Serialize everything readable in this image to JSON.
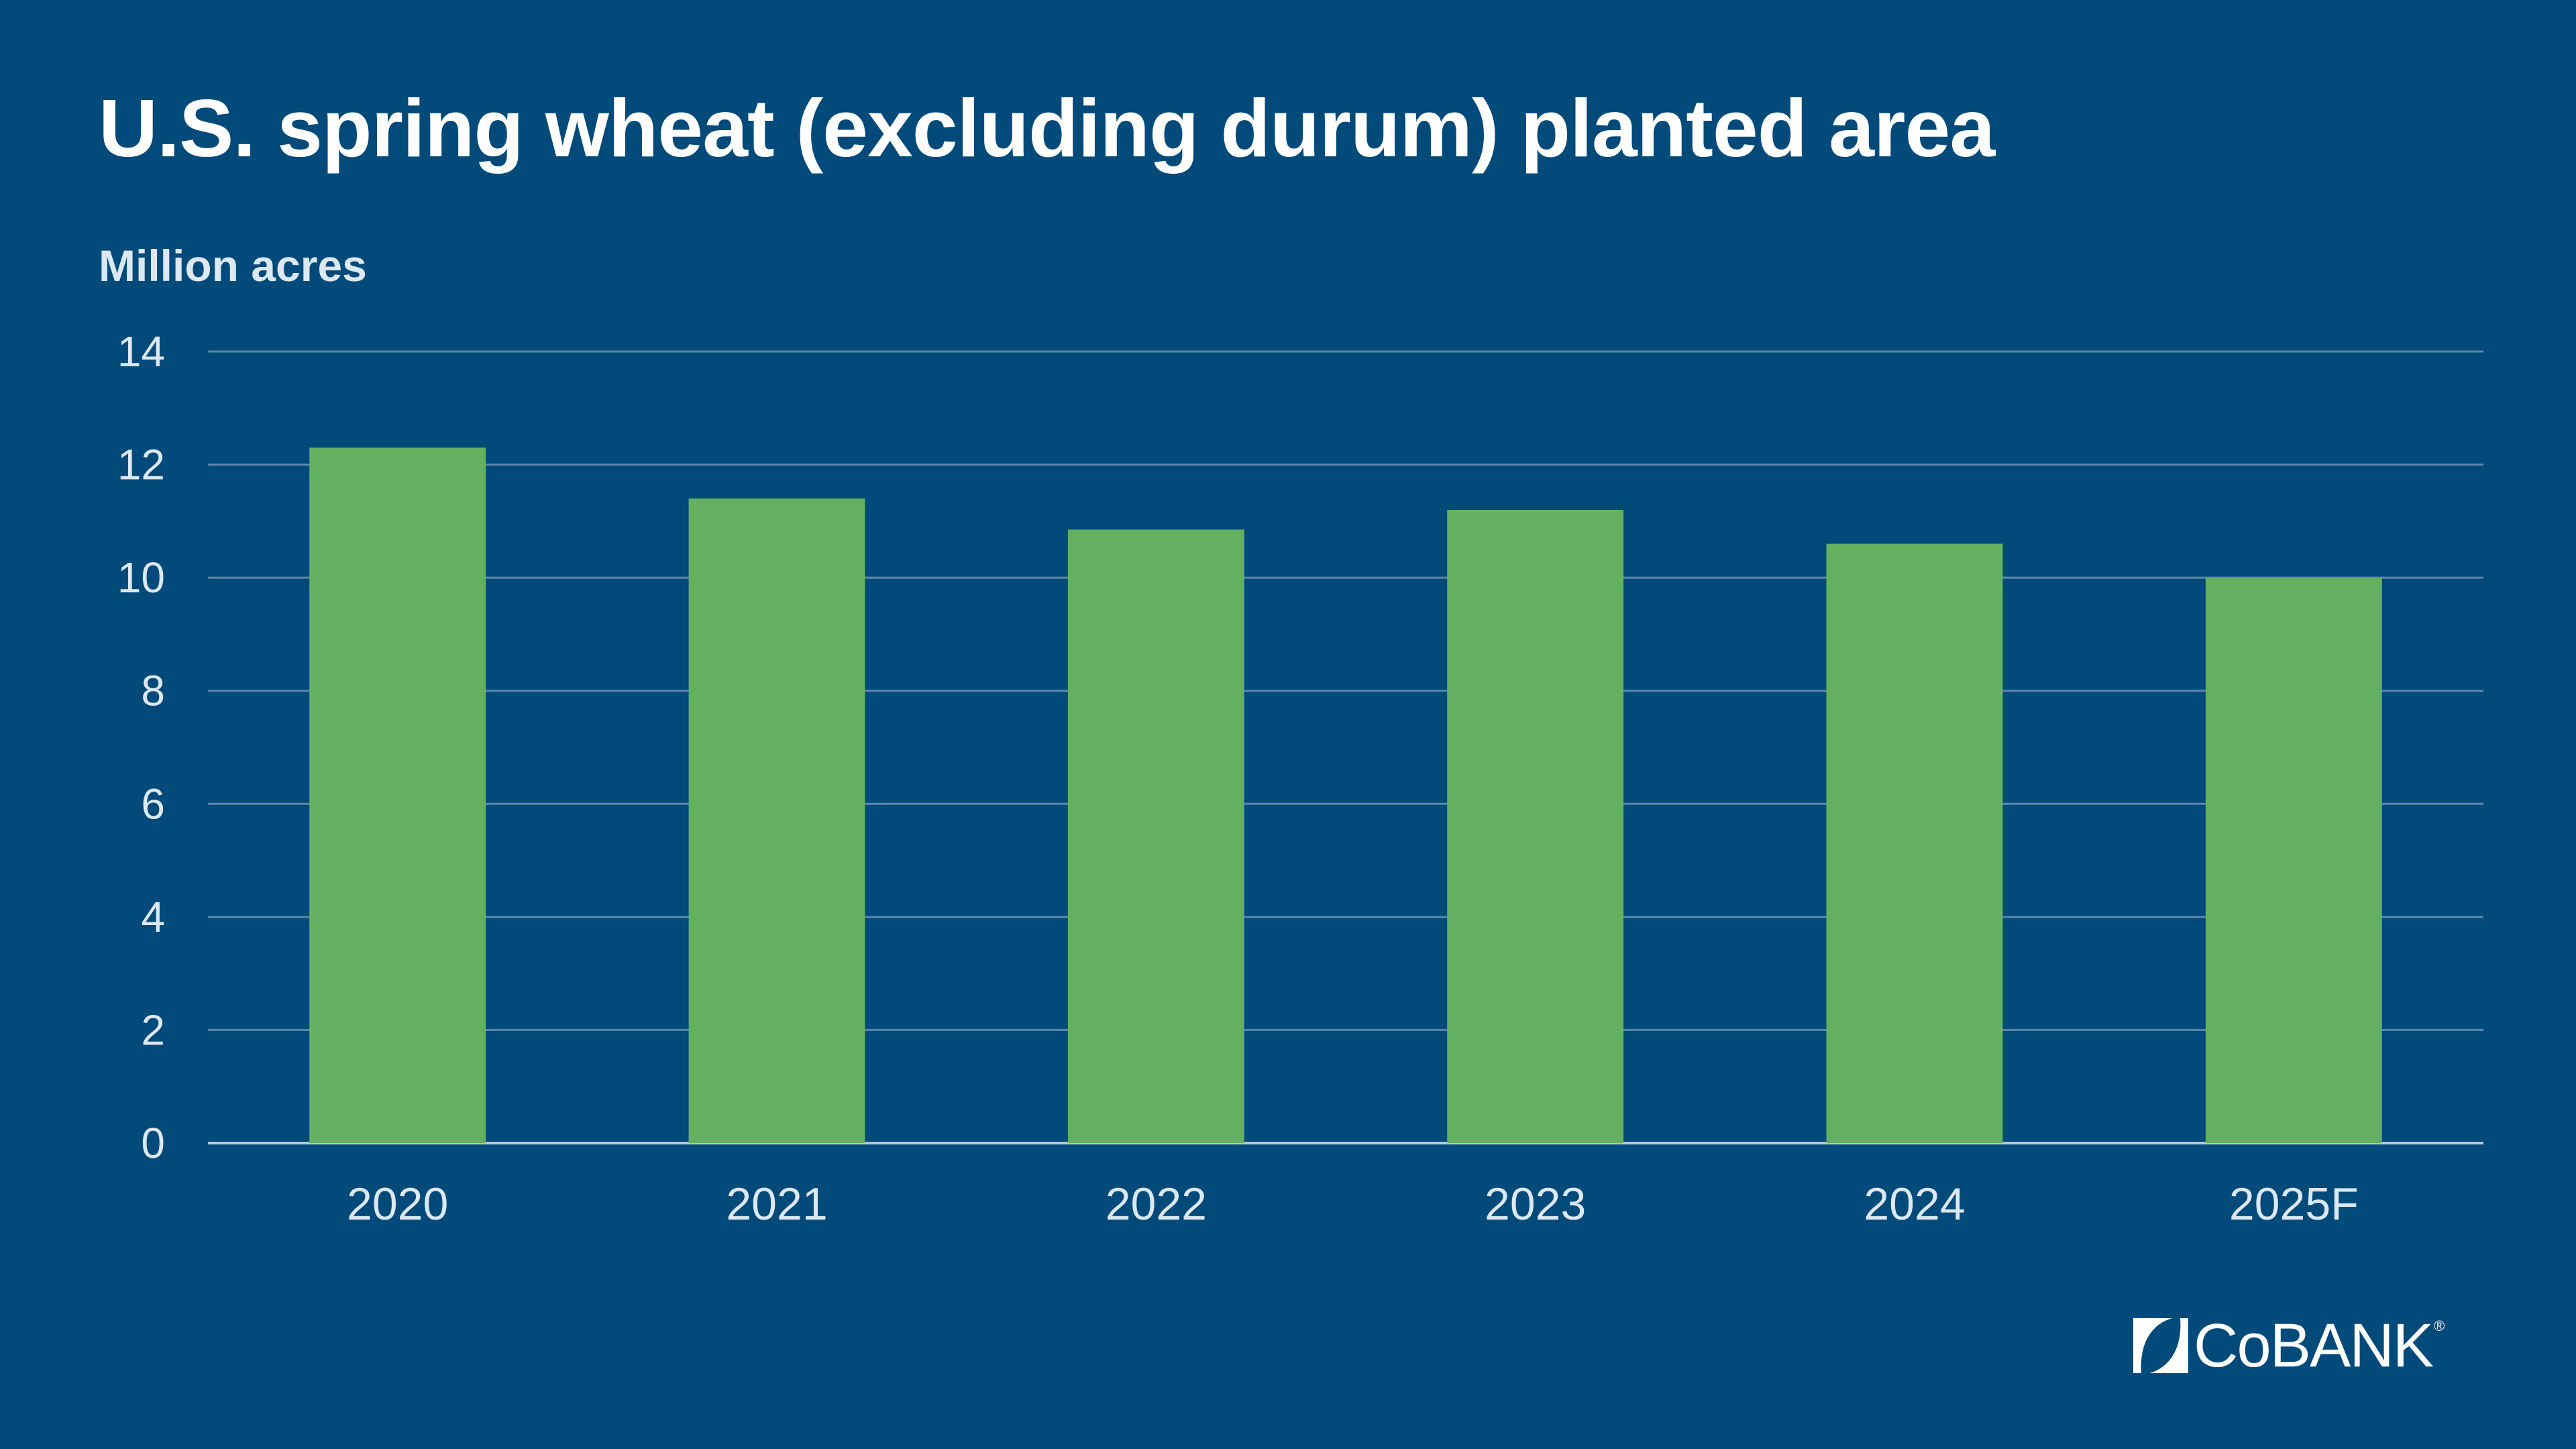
{
  "title": "U.S. spring wheat (excluding durum) planted area",
  "unit_label": "Million acres",
  "brand": {
    "logo_text": "CoBANK",
    "logo_registered": "®",
    "logo_icon": "cobank-mark-icon"
  },
  "colors": {
    "background": "#014a7a",
    "bar": "#63b160",
    "gridline": "#5c87a8",
    "axis_line": "#b7c9d8",
    "tick_text": "#dce8f2",
    "title_text": "#ffffff"
  },
  "chart_data": {
    "type": "bar",
    "title": "U.S. spring wheat (excluding durum) planted area",
    "ylabel": "Million acres",
    "xlabel": "",
    "categories": [
      "2020",
      "2021",
      "2022",
      "2023",
      "2024",
      "2025F"
    ],
    "values": [
      12.3,
      11.4,
      10.85,
      11.2,
      10.6,
      10.0
    ],
    "ylim": [
      0,
      14
    ],
    "yticks": [
      0,
      2,
      4,
      6,
      8,
      10,
      12,
      14
    ],
    "ytick_labels": [
      "0",
      "2",
      "4",
      "6",
      "8",
      "10",
      "12",
      "14"
    ],
    "grid": true,
    "legend": "none"
  }
}
